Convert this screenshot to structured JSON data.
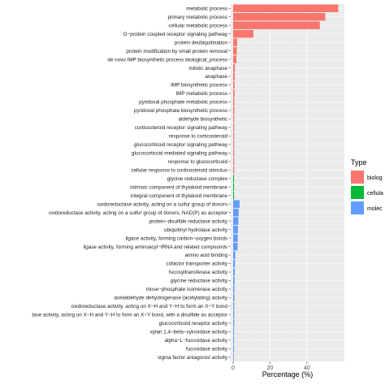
{
  "chart_data": {
    "type": "bar",
    "orientation": "horizontal",
    "xlabel": "Percentage (%)",
    "x_ticks": [
      0,
      20,
      40
    ],
    "xlim": [
      0,
      59
    ],
    "grid": true,
    "legend": {
      "title": "Type",
      "placement": "right",
      "entries": [
        {
          "label": "biolog",
          "color": "#F8766D"
        },
        {
          "label": "cellula",
          "color": "#00BA38"
        },
        {
          "label": "molec",
          "color": "#619CFF"
        }
      ]
    },
    "categories": [
      "metabolic process",
      "primary metabolic process",
      "cellular metabolic process",
      "G−protein coupled receptor signaling pathway",
      "protein deubiquitination",
      "protein modification by small protein removal",
      "de novo IMP biosynthetic process biological_process",
      "mitotic anaphase",
      "anaphase",
      "IMP biosynthetic process",
      "IMP metabolic process",
      "pyridoxal phosphate metabolic process",
      "pyridoxal phosphate biosynthetic process",
      "aldehyde biosynthetic",
      "corticosteroid receptor signaling pathway",
      "response to corticosteroid",
      "glucocorticoid receptor signaling pathway",
      "glucocorticoid mediated signaling pathway",
      "response to glucocorticoid",
      "cellular response to corticosteroid stimulus",
      "glycine reductase complex",
      "intrinsic component of thylakoid membrane",
      "integral component of thylakoid membrane",
      "oxidoreductase activity, acting on a sulfur group of donors",
      "oxidoreductase activity, acting on a sulfur group of donors, NAD(P) as acceptor",
      "protein−disulfide reductase activity",
      "ubiquitinyl hydrolase activity",
      "ligase activity, forming carbon−oxygen bonds",
      "ligase activity, forming aminoacyl−tRNA and related compounds",
      "amino acid binding",
      "cofactor transporter activity",
      "fucosyltransferase activity",
      "glycine reductase activity",
      "triose−phosphate isomerase activity",
      "acetaldehyde dehydrogenase (acetylating) activity",
      "oxidoreductase activity, acting on X−H and Y−H to form an X−Y bond",
      "tase activity, acting on X−H and Y−H to form an X−Y bond, with a disulfide as acceptor",
      "glucocorticoid receptor activity",
      "xylan 1,4−beta−xylosidase activity",
      "alpha−L−fucosidase activity",
      "fucosidase activity",
      "sigma factor antagonist activity"
    ],
    "values": [
      57,
      50,
      47,
      11,
      2.2,
      2.0,
      1.8,
      1.0,
      0.9,
      0.8,
      0.8,
      0.7,
      0.7,
      0.6,
      0.6,
      0.6,
      0.6,
      0.6,
      0.6,
      0.6,
      0.5,
      0.5,
      0.5,
      3.5,
      3.0,
      2.8,
      2.6,
      2.5,
      2.4,
      1.2,
      1.0,
      0.9,
      0.8,
      0.7,
      0.7,
      0.6,
      0.6,
      0.6,
      0.5,
      0.5,
      0.5,
      0.4
    ],
    "types": [
      "biolog",
      "biolog",
      "biolog",
      "biolog",
      "biolog",
      "biolog",
      "biolog",
      "biolog",
      "biolog",
      "biolog",
      "biolog",
      "biolog",
      "biolog",
      "biolog",
      "biolog",
      "biolog",
      "biolog",
      "biolog",
      "biolog",
      "biolog",
      "cellula",
      "cellula",
      "cellula",
      "molec",
      "molec",
      "molec",
      "molec",
      "molec",
      "molec",
      "molec",
      "molec",
      "molec",
      "molec",
      "molec",
      "molec",
      "molec",
      "molec",
      "molec",
      "molec",
      "molec",
      "molec",
      "molec"
    ]
  }
}
